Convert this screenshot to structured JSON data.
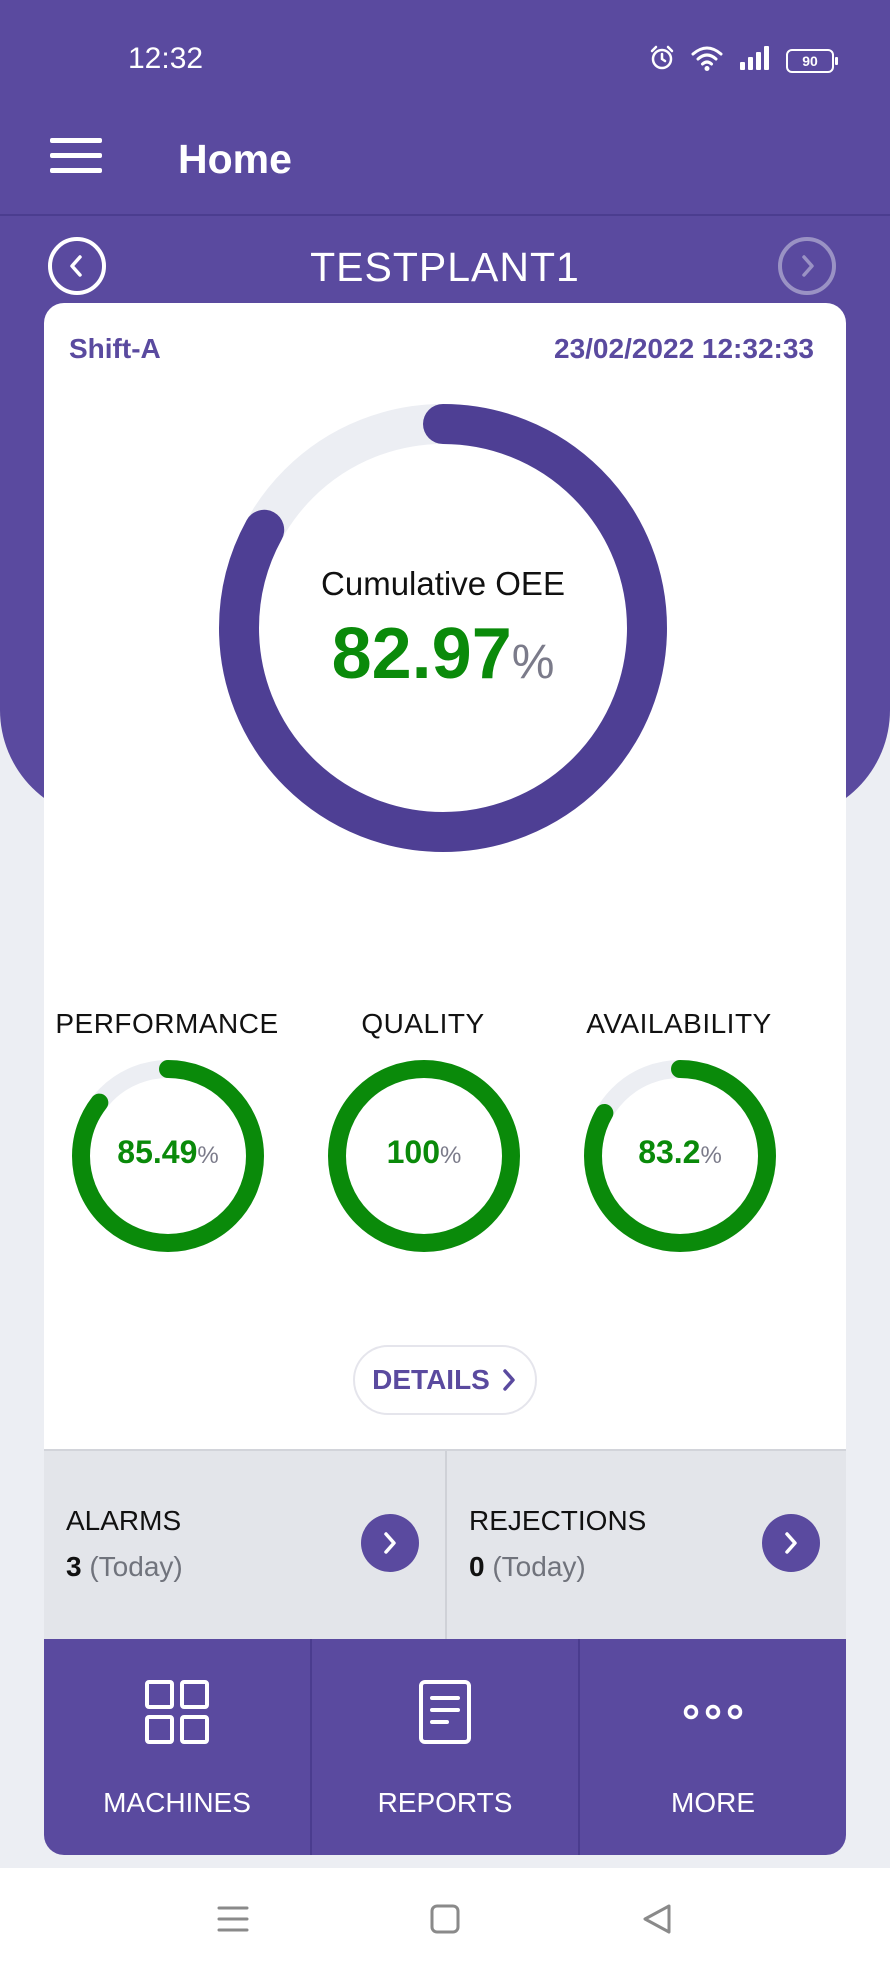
{
  "status_bar": {
    "time": "12:32",
    "battery": "90",
    "icons": [
      "alarm-icon",
      "wifi-icon",
      "signal-icon",
      "battery-icon"
    ]
  },
  "app_bar": {
    "title": "Home",
    "menu_icon": "hamburger-menu-icon"
  },
  "plant": {
    "name": "TESTPLANT1",
    "prev_icon": "chevron-left-circle-icon",
    "next_icon": "chevron-right-circle-icon"
  },
  "card": {
    "shift": "Shift-A",
    "datetime": "23/02/2022 12:32:33",
    "cumulative": {
      "label": "Cumulative OEE",
      "value": "82.97",
      "unit": "%",
      "fraction": 0.8297
    },
    "metrics": [
      {
        "label": "PERFORMANCE",
        "value": "85.49",
        "unit": "%",
        "fraction": 0.8549
      },
      {
        "label": "QUALITY",
        "value": "100",
        "unit": "%",
        "fraction": 1.0
      },
      {
        "label": "AVAILABILITY",
        "value": "83.2",
        "unit": "%",
        "fraction": 0.832
      }
    ],
    "details_label": "DETAILS"
  },
  "stats": {
    "alarms": {
      "title": "ALARMS",
      "count": "3",
      "suffix": "(Today)"
    },
    "rejections": {
      "title": "REJECTIONS",
      "count": "0",
      "suffix": "(Today)"
    }
  },
  "bottom_nav": {
    "items": [
      {
        "label": "MACHINES",
        "icon": "grid-icon"
      },
      {
        "label": "REPORTS",
        "icon": "document-icon"
      },
      {
        "label": "MORE",
        "icon": "more-dots-icon"
      }
    ]
  },
  "system_nav": {
    "icons": [
      "recents-icon",
      "home-icon",
      "back-icon"
    ]
  },
  "colors": {
    "primary": "#5a4a9f",
    "primary_dark": "#4b3d8f",
    "green": "#0a8a0a",
    "track": "#eceef3",
    "background": "#eceef3"
  }
}
